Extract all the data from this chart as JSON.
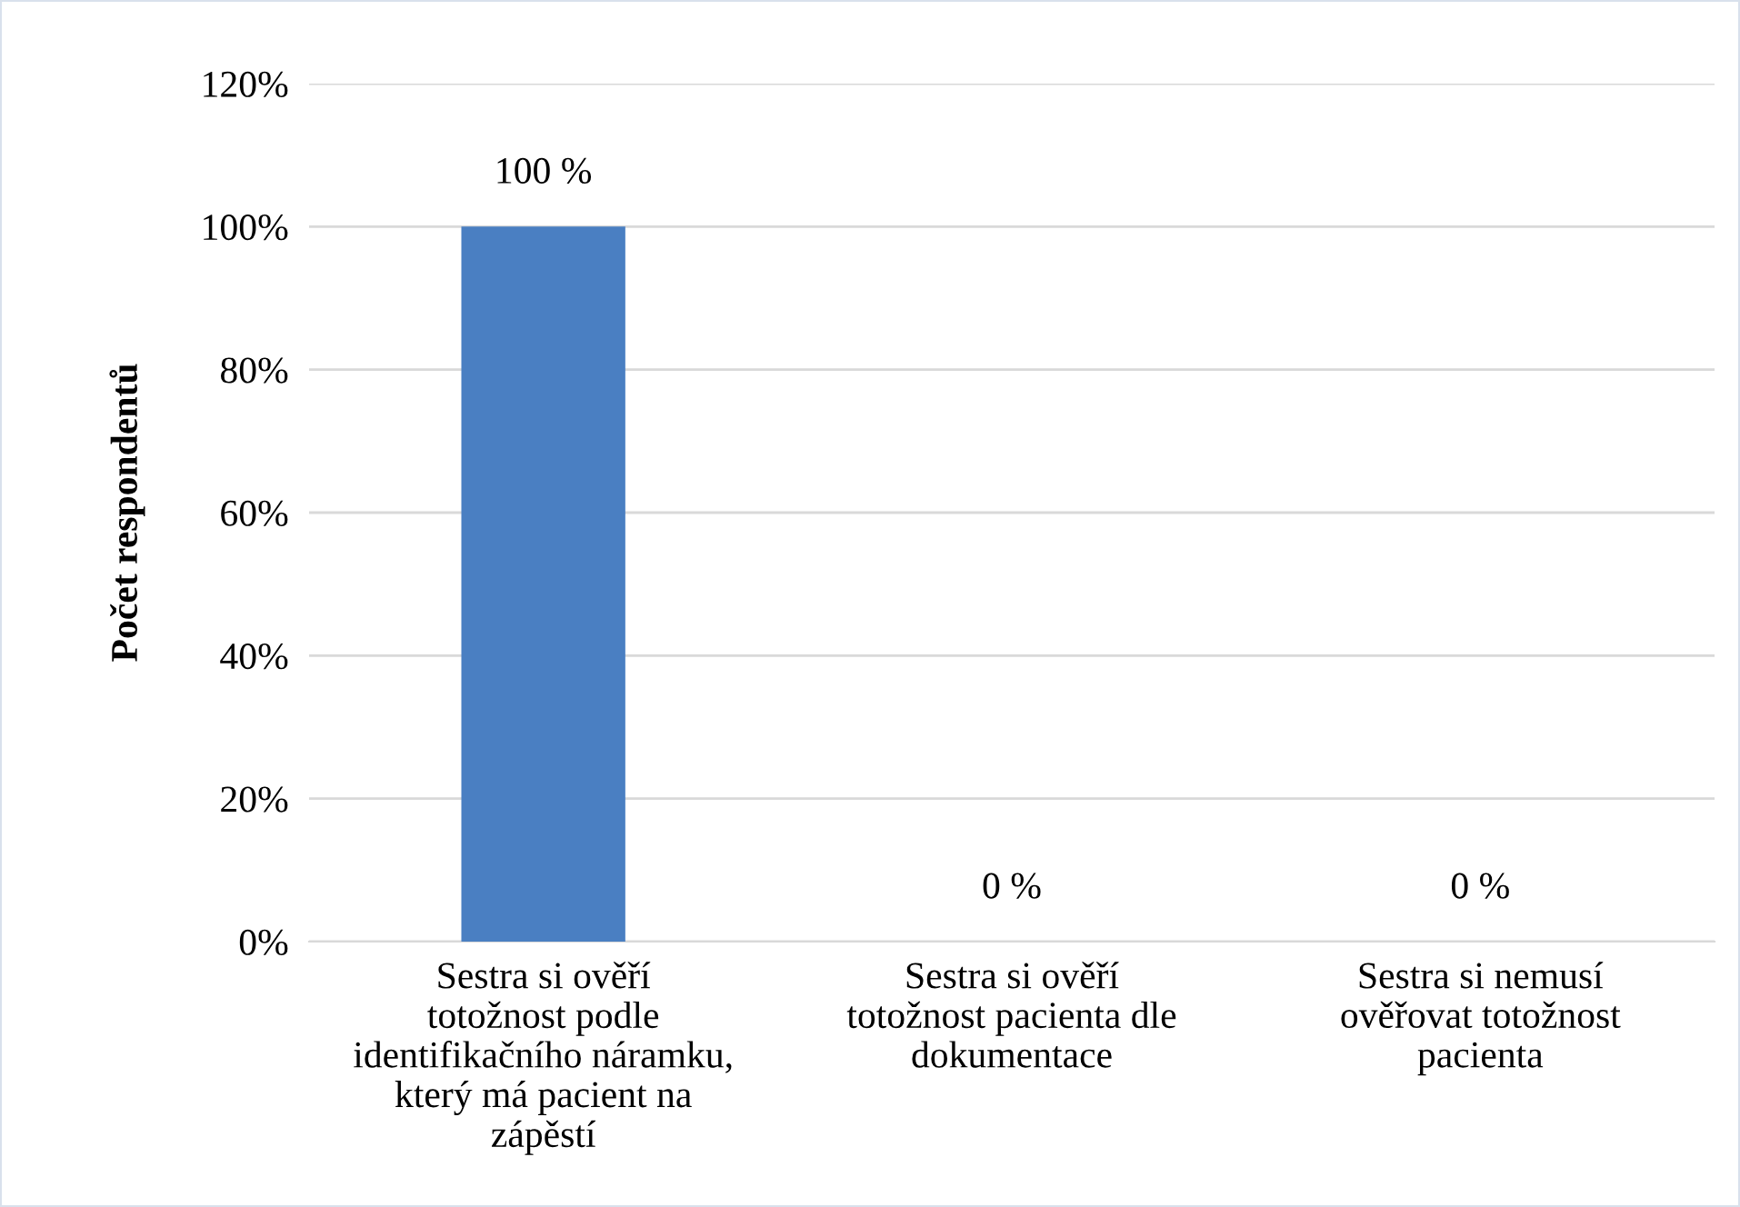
{
  "chart_data": {
    "type": "bar",
    "ylabel": "Počet respondentů",
    "categories": [
      "Sestra si ověří totožnost podle identifikačního náramku, který má pacient na zápěstí",
      "Sestra si ověří totožnost pacienta dle dokumentace",
      "Sestra si nemusí ověřovat totožnost pacienta"
    ],
    "values": [
      100,
      0,
      0
    ],
    "value_labels": [
      "100 %",
      "0 %",
      "0 %"
    ],
    "color": "#4a7fc2",
    "ylim": [
      0,
      120
    ],
    "yticks": [
      {
        "value": 0,
        "label": "0%"
      },
      {
        "value": 20,
        "label": "20%"
      },
      {
        "value": 40,
        "label": "40%"
      },
      {
        "value": 60,
        "label": "60%"
      },
      {
        "value": 80,
        "label": "80%"
      },
      {
        "value": 100,
        "label": "100%"
      },
      {
        "value": 120,
        "label": "120%"
      }
    ],
    "grid": "y",
    "legend": false
  }
}
